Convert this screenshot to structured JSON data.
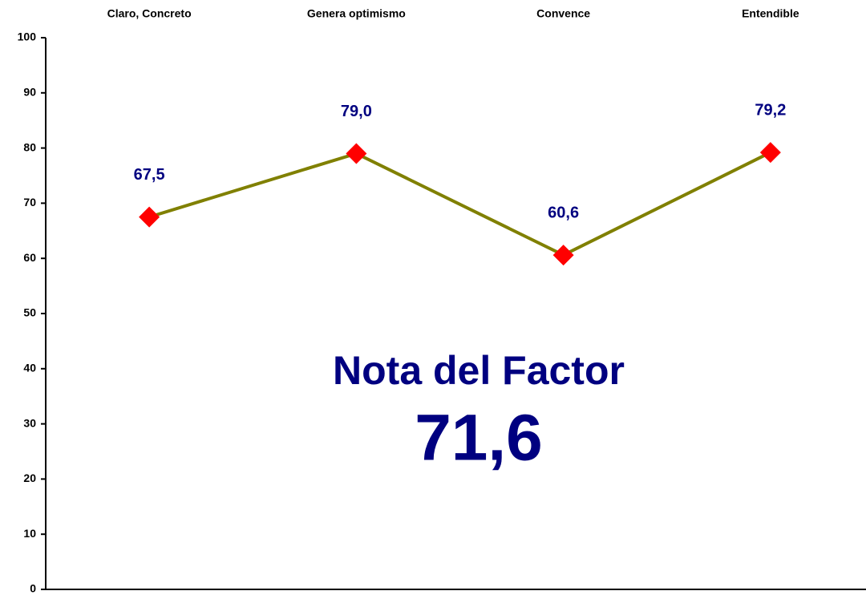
{
  "chart_data": {
    "type": "line",
    "categories": [
      "Claro, Concreto",
      "Genera optimismo",
      "Convence",
      "Entendible"
    ],
    "series": [
      {
        "name": null,
        "color": "#808000",
        "marker_color": "#ff0000",
        "values": [
          67.5,
          79.0,
          60.6,
          79.2
        ],
        "value_labels": [
          "67,5",
          "79,0",
          "60,6",
          "79,2"
        ]
      }
    ],
    "ylim": [
      0,
      100
    ],
    "yticks": [
      0,
      10,
      20,
      30,
      40,
      50,
      60,
      70,
      80,
      90,
      100
    ],
    "annotations": [
      "Nota del Factor",
      "71,6"
    ],
    "grid": false
  }
}
